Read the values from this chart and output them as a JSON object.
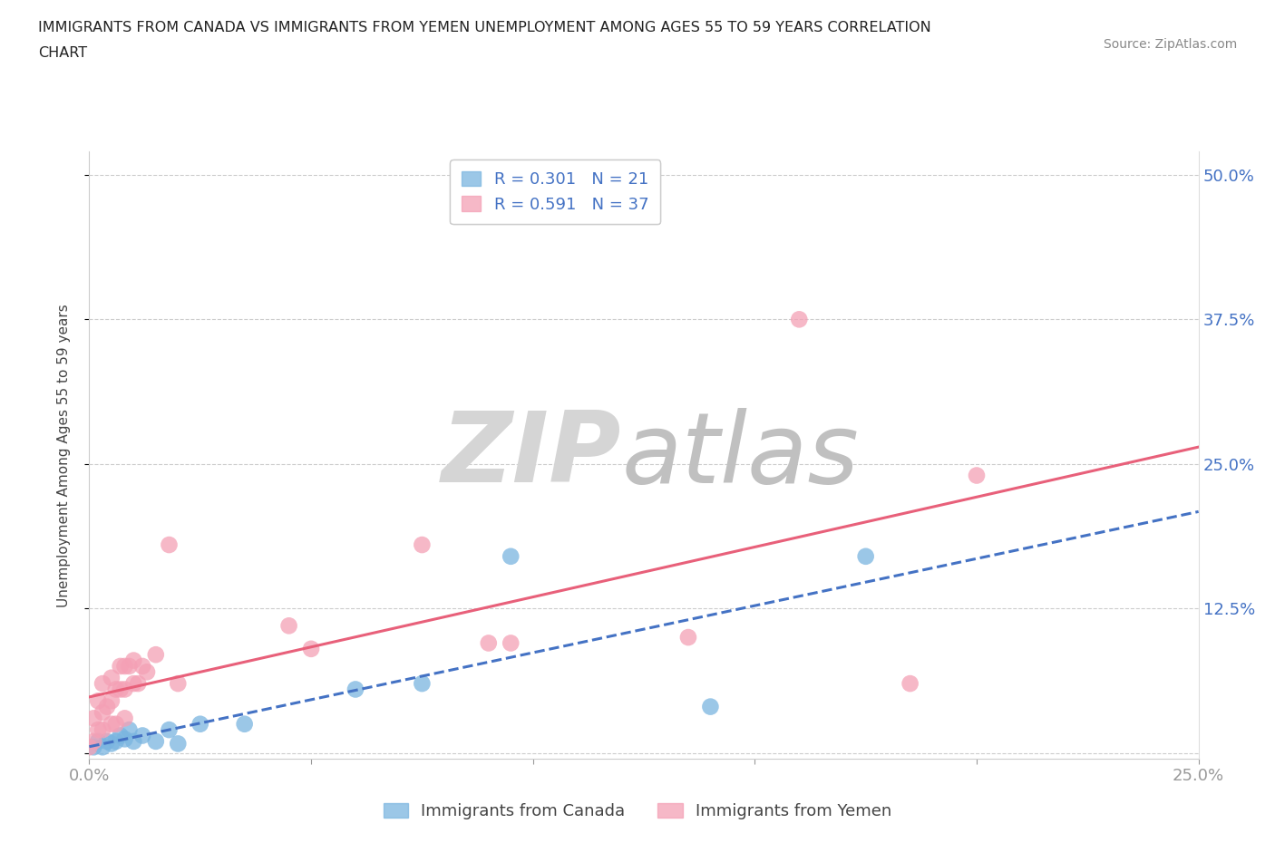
{
  "title_line1": "IMMIGRANTS FROM CANADA VS IMMIGRANTS FROM YEMEN UNEMPLOYMENT AMONG AGES 55 TO 59 YEARS CORRELATION",
  "title_line2": "CHART",
  "source_text": "Source: ZipAtlas.com",
  "ylabel": "Unemployment Among Ages 55 to 59 years",
  "xlim": [
    0.0,
    0.25
  ],
  "ylim": [
    -0.005,
    0.52
  ],
  "xticks": [
    0.0,
    0.05,
    0.1,
    0.15,
    0.2,
    0.25
  ],
  "xticklabels": [
    "0.0%",
    "",
    "",
    "",
    "",
    "25.0%"
  ],
  "yticks": [
    0.0,
    0.125,
    0.25,
    0.375,
    0.5
  ],
  "yticklabels_right": [
    "",
    "12.5%",
    "25.0%",
    "37.5%",
    "50.0%"
  ],
  "canada_color": "#7ab5e0",
  "yemen_color": "#f4a0b5",
  "canada_line_color": "#4472c4",
  "yemen_line_color": "#e8607a",
  "background_color": "#ffffff",
  "grid_color": "#cccccc",
  "legend_R_canada": "R = 0.301",
  "legend_N_canada": "N = 21",
  "legend_R_yemen": "R = 0.591",
  "legend_N_yemen": "N = 37",
  "canada_x": [
    0.001,
    0.002,
    0.003,
    0.004,
    0.005,
    0.006,
    0.007,
    0.008,
    0.009,
    0.01,
    0.012,
    0.015,
    0.018,
    0.02,
    0.025,
    0.035,
    0.06,
    0.075,
    0.095,
    0.14,
    0.175
  ],
  "canada_y": [
    0.005,
    0.01,
    0.005,
    0.01,
    0.008,
    0.01,
    0.015,
    0.012,
    0.02,
    0.01,
    0.015,
    0.01,
    0.02,
    0.008,
    0.025,
    0.025,
    0.055,
    0.06,
    0.17,
    0.04,
    0.17
  ],
  "yemen_x": [
    0.0,
    0.001,
    0.001,
    0.002,
    0.002,
    0.003,
    0.003,
    0.003,
    0.004,
    0.005,
    0.005,
    0.005,
    0.006,
    0.006,
    0.007,
    0.007,
    0.008,
    0.008,
    0.008,
    0.009,
    0.01,
    0.01,
    0.011,
    0.012,
    0.013,
    0.015,
    0.018,
    0.02,
    0.045,
    0.05,
    0.075,
    0.09,
    0.095,
    0.135,
    0.16,
    0.185,
    0.2
  ],
  "yemen_y": [
    0.005,
    0.01,
    0.03,
    0.02,
    0.045,
    0.02,
    0.035,
    0.06,
    0.04,
    0.025,
    0.045,
    0.065,
    0.025,
    0.055,
    0.055,
    0.075,
    0.03,
    0.055,
    0.075,
    0.075,
    0.06,
    0.08,
    0.06,
    0.075,
    0.07,
    0.085,
    0.18,
    0.06,
    0.11,
    0.09,
    0.18,
    0.095,
    0.095,
    0.1,
    0.375,
    0.06,
    0.24
  ]
}
